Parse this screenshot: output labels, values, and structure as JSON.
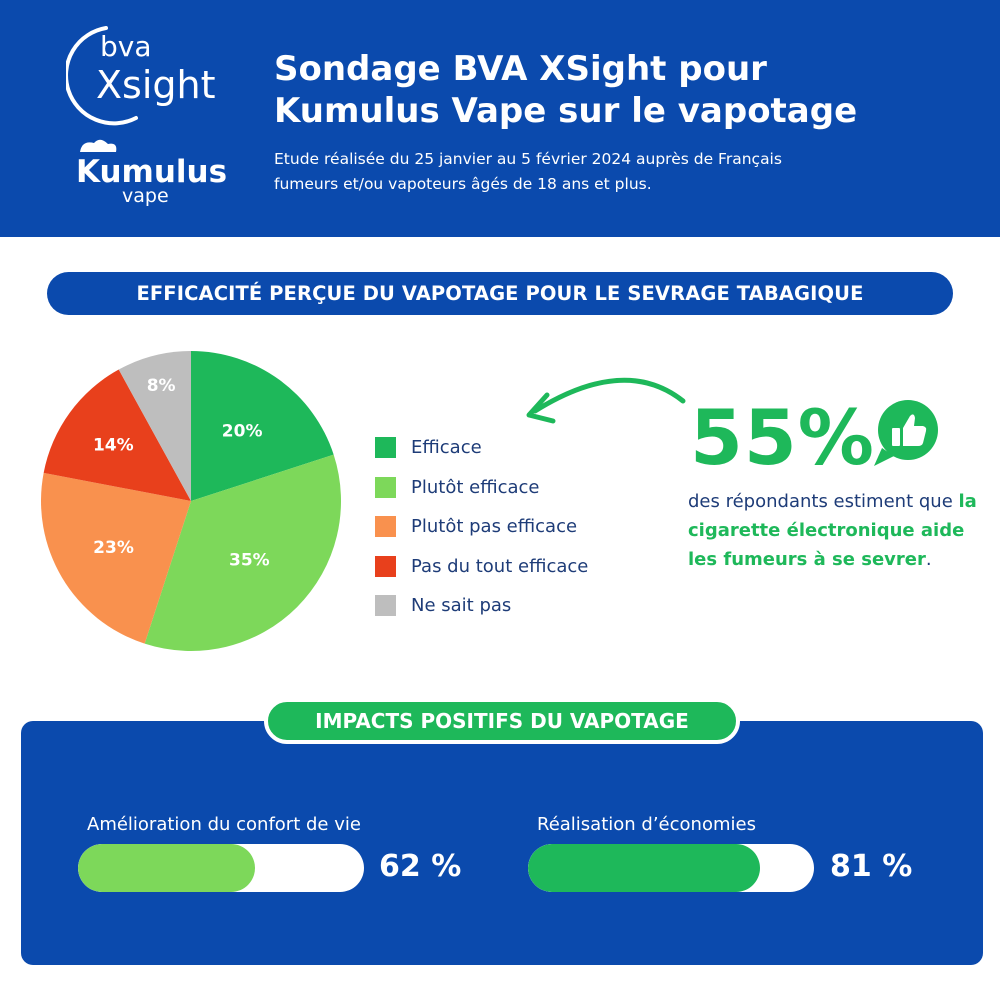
{
  "header": {
    "logo_bva_top": "bva",
    "logo_bva_bottom": "Xsight",
    "logo_kumulus_top": "Kumulus",
    "logo_kumulus_bottom": "vape",
    "title_line1": "Sondage BVA XSight pour",
    "title_line2": "Kumulus Vape sur le vapotage",
    "subtitle_line1": "Etude réalisée du 25 janvier au 5 février 2024 auprès de Français",
    "subtitle_line2": "fumeurs et/ou vapoteurs âgés de 18 ans et plus."
  },
  "section1": {
    "title": "EFFICACITÉ PERÇUE DU VAPOTAGE POUR LE SEVRAGE TABAGIQUE"
  },
  "highlight": {
    "value": "55%",
    "text_before": "des répondants estiment que ",
    "text_highlight": "la cigarette électronique aide les fumeurs à se sevrer",
    "text_after": "."
  },
  "impacts": {
    "title": "IMPACTS POSITIFS DU VAPOTAGE",
    "metrics": [
      {
        "label": "Amélioration du confort de vie",
        "value_text": "62 %",
        "value": 62,
        "color": "#7dd85a"
      },
      {
        "label": "Réalisation d’économies",
        "value_text": "81 %",
        "value": 81,
        "color": "#1eb85a"
      }
    ]
  },
  "colors": {
    "brand_blue": "#0b4aad",
    "green": "#1eb85a",
    "light_green": "#7dd85a",
    "orange": "#f9914e",
    "red": "#e8401c",
    "gray": "#bebebe"
  },
  "chart_data": [
    {
      "type": "pie",
      "title": "EFFICACITÉ PERÇUE DU VAPOTAGE POUR LE SEVRAGE TABAGIQUE",
      "categories": [
        "Efficace",
        "Plutôt efficace",
        "Plutôt pas efficace",
        "Pas du tout efficace",
        "Ne sait pas"
      ],
      "values": [
        20,
        35,
        23,
        14,
        8
      ],
      "labels": [
        "20%",
        "35%",
        "23%",
        "14%",
        "8%"
      ],
      "colors": [
        "#1eb85a",
        "#7dd85a",
        "#f9914e",
        "#e8401c",
        "#bebebe"
      ],
      "legend_position": "right"
    },
    {
      "type": "bar",
      "orientation": "horizontal",
      "title": "IMPACTS POSITIFS DU VAPOTAGE",
      "categories": [
        "Amélioration du confort de vie",
        "Réalisation d’économies"
      ],
      "values": [
        62,
        81
      ],
      "ylim": [
        0,
        100
      ]
    }
  ]
}
